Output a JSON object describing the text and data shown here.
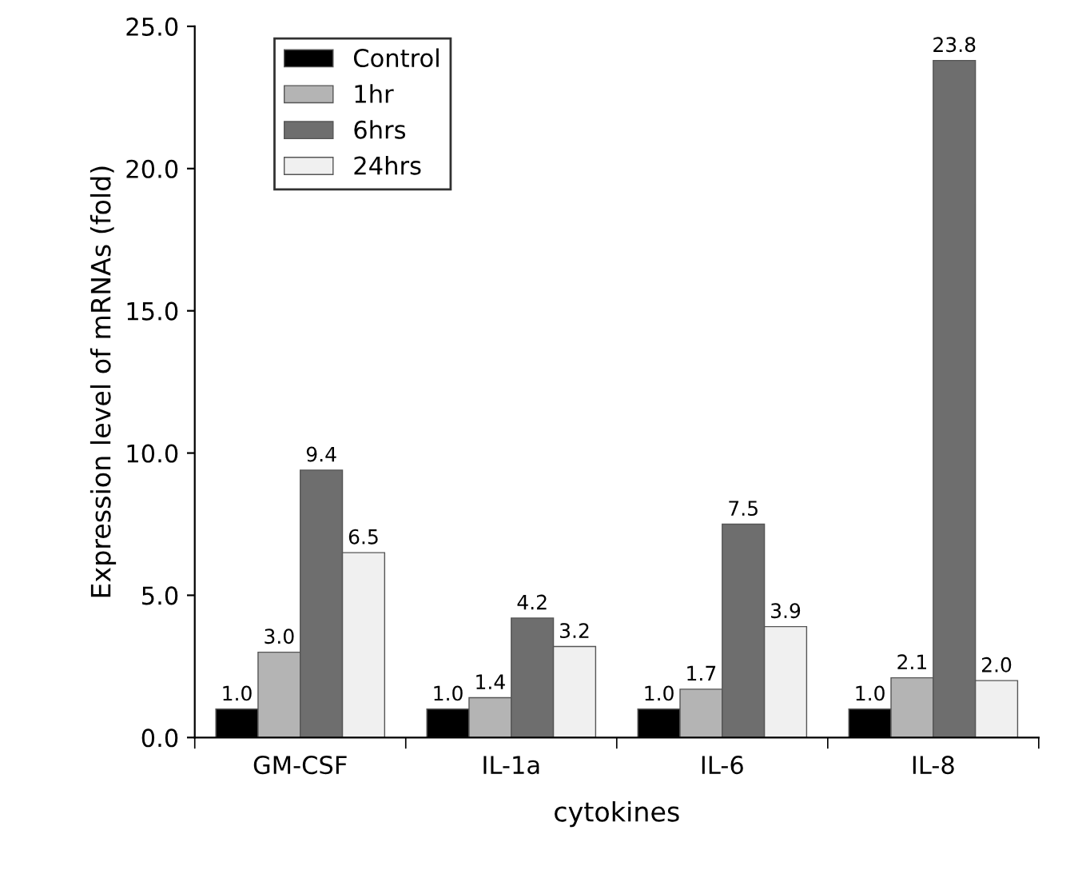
{
  "chart_data": {
    "type": "bar",
    "xlabel": "cytokines",
    "ylabel": "Expression level of mRNAs (fold)",
    "categories": [
      "GM-CSF",
      "IL-1a",
      "IL-6",
      "IL-8"
    ],
    "series": [
      {
        "name": "Control",
        "color": "#000000",
        "values": [
          1,
          1,
          1,
          1
        ],
        "value_labels": [
          "1.0",
          "1.0",
          "1.0",
          "1.0"
        ]
      },
      {
        "name": "1hr",
        "color": "#b4b4b4",
        "values": [
          3,
          1.4,
          1.7,
          2.1
        ],
        "value_labels": [
          "3.0",
          "1.4",
          "1.7",
          "2.1"
        ]
      },
      {
        "name": "6hrs",
        "color": "#6e6e6e",
        "values": [
          9.4,
          4.2,
          7.5,
          23.8
        ],
        "value_labels": [
          "9.4",
          "4.2",
          "7.5",
          "23.8"
        ]
      },
      {
        "name": "24hrs",
        "color": "#f0f0f0",
        "values": [
          6.5,
          3.2,
          3.9,
          2
        ],
        "value_labels": [
          "6.5",
          "3.2",
          "3.9",
          "2.0"
        ]
      }
    ],
    "ylim": [
      0,
      25
    ],
    "yticks": [
      {
        "value": 0,
        "label": "0.0"
      },
      {
        "value": 5,
        "label": "5.0"
      },
      {
        "value": 10,
        "label": "10.0"
      },
      {
        "value": 15,
        "label": "15.0"
      },
      {
        "value": 20,
        "label": "20.0"
      },
      {
        "value": 25,
        "label": "25.0"
      }
    ],
    "grid": false,
    "legend": "top left"
  }
}
